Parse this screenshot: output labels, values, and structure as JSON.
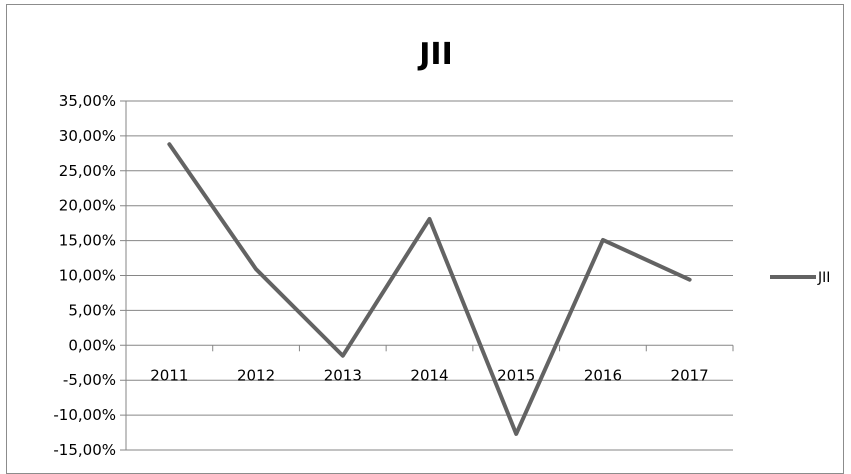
{
  "chart_data": {
    "type": "line",
    "title": "JII",
    "categories": [
      "2011",
      "2012",
      "2013",
      "2014",
      "2015",
      "2016",
      "2017"
    ],
    "series": [
      {
        "name": "JII",
        "values": [
          28.8,
          10.9,
          -1.5,
          18.1,
          -12.7,
          15.1,
          9.4
        ]
      }
    ],
    "ylim": [
      -15,
      35
    ],
    "ytick_step": 5,
    "ytick_labels": [
      "35,00%",
      "30,00%",
      "25,00%",
      "20,00%",
      "15,00%",
      "10,00%",
      "5,00%",
      "0,00%",
      "-5,00%",
      "-10,00%",
      "-15,00%"
    ],
    "grid": true,
    "legend_position": "right",
    "colors": {
      "line": "#636363",
      "grid": "#868686",
      "axis": "#868686"
    }
  }
}
